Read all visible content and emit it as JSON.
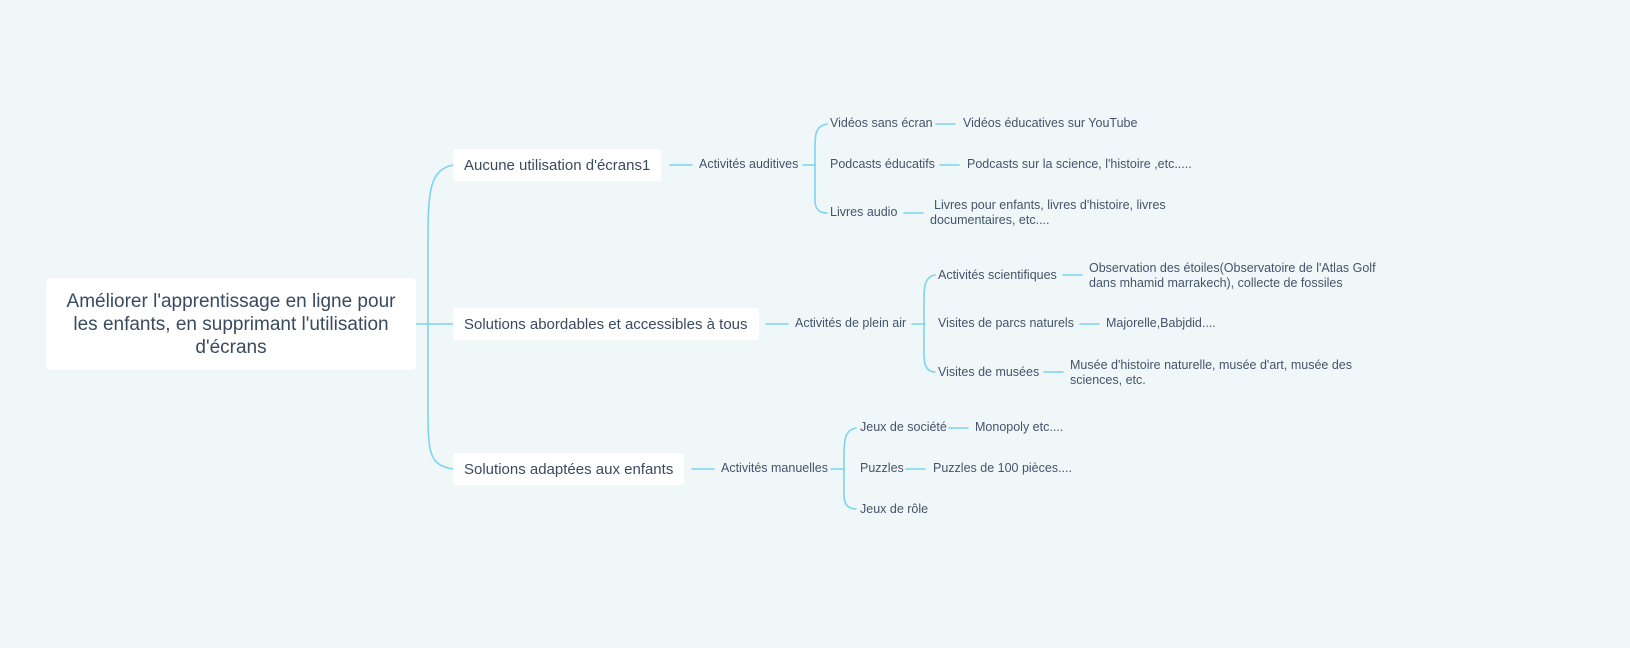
{
  "root": "Améliorer l'apprentissage en ligne pour les enfants, en supprimant l'utilisation d'écrans",
  "branches": [
    {
      "label": "Aucune utilisation d'écrans1",
      "sub": "Activités auditives",
      "items": [
        {
          "label": "Vidéos sans écran",
          "detail": "Vidéos éducatives sur YouTube"
        },
        {
          "label": "Podcasts éducatifs",
          "detail": "Podcasts sur la science, l'histoire ,etc....."
        },
        {
          "label": "Livres audio",
          "detail": "Livres pour enfants, livres d'histoire, livres documentaires, etc...."
        }
      ]
    },
    {
      "label": "Solutions abordables et accessibles à tous",
      "sub": "Activités de plein air",
      "items": [
        {
          "label": "Activités scientifiques",
          "detail": "Observation des étoiles(Observatoire de l'Atlas Golf dans  mhamid marrakech), collecte de fossiles"
        },
        {
          "label": "Visites de parcs naturels",
          "detail": "Majorelle,Babjdid...."
        },
        {
          "label": "Visites de musées",
          "detail": "Musée d'histoire naturelle, musée d'art, musée des sciences, etc."
        }
      ]
    },
    {
      "label": "Solutions adaptées aux enfants",
      "sub": "Activités manuelles",
      "items": [
        {
          "label": "Jeux de société",
          "detail": "Monopoly etc...."
        },
        {
          "label": "Puzzles",
          "detail": "Puzzles de 100 pièces...."
        },
        {
          "label": "Jeux de rôle",
          "detail": ""
        }
      ]
    }
  ],
  "colors": {
    "line": "#7dd3f0",
    "background": "#eff7f9",
    "node_fill": "#ffffff",
    "text": "#3a4a5f"
  }
}
